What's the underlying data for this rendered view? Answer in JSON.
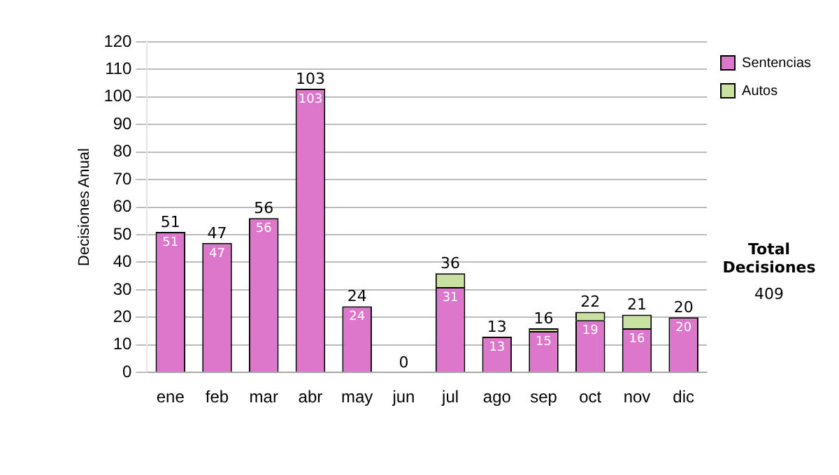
{
  "chart_data": {
    "type": "bar",
    "stacked": true,
    "ylabel": "Decisiones Anual",
    "categories": [
      "ene",
      "feb",
      "mar",
      "abr",
      "may",
      "jun",
      "jul",
      "ago",
      "sep",
      "oct",
      "nov",
      "dic"
    ],
    "series": [
      {
        "name": "Sentencias",
        "color": "#dd77cc",
        "values": [
          51,
          47,
          56,
          103,
          24,
          0,
          31,
          13,
          15,
          19,
          16,
          20
        ],
        "value_labels": [
          "51",
          "47",
          "56",
          "103",
          "24",
          null,
          "31",
          "13",
          "15",
          "19",
          "16",
          "20"
        ]
      },
      {
        "name": "Autos",
        "color": "#c8e0a0",
        "values": [
          0,
          0,
          0,
          0,
          0,
          0,
          5,
          0,
          1,
          3,
          5,
          0
        ]
      }
    ],
    "totals": [
      "51",
      "47",
      "56",
      "103",
      "24",
      "0",
      "36",
      "13",
      "16",
      "22",
      "21",
      "20"
    ],
    "ylim": [
      0,
      120
    ],
    "yticks": [
      0,
      10,
      20,
      30,
      40,
      50,
      60,
      70,
      80,
      90,
      100,
      110,
      120
    ],
    "grid": "y",
    "legend": "right",
    "annotations": [
      "Total Decisiones",
      "409"
    ]
  }
}
